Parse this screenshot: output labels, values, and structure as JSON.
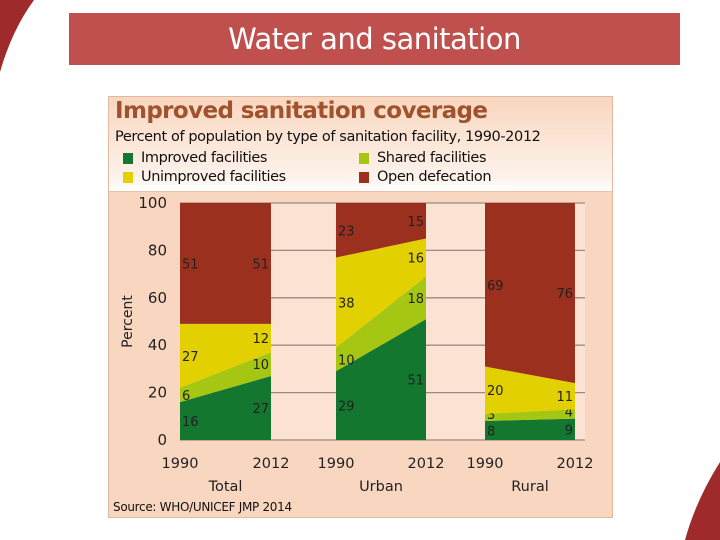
{
  "slide": {
    "title": "Water and sanitation",
    "accent_color": "#c0504d",
    "decor_color": "#9e2a2b"
  },
  "panel": {
    "title": "Improved sanitation coverage",
    "subtitle": "Percent of population by type of sanitation facility, 1990-2012",
    "source": "Source:  WHO/UNICEF JMP 2014"
  },
  "chart_data": {
    "type": "area",
    "title": "Improved sanitation coverage",
    "subtitle": "Percent of population by type of sanitation facility, 1990-2012",
    "ylabel": "Percent",
    "ylim": [
      0,
      100
    ],
    "yticks": [
      0,
      20,
      40,
      60,
      80,
      100
    ],
    "grid": true,
    "stacked": true,
    "legend": [
      {
        "name": "Improved facilities",
        "color": "#13772f"
      },
      {
        "name": "Shared facilities",
        "color": "#a5c613"
      },
      {
        "name": "Unimproved facilities",
        "color": "#e3d000"
      },
      {
        "name": "Open defecation",
        "color": "#9b301f"
      }
    ],
    "legend_position": "top",
    "groups": [
      {
        "name": "Total",
        "x": [
          "1990",
          "2012"
        ],
        "series": [
          {
            "name": "Improved facilities",
            "values": [
              16,
              27
            ]
          },
          {
            "name": "Shared facilities",
            "values": [
              6,
              10
            ]
          },
          {
            "name": "Unimproved facilities",
            "values": [
              27,
              12
            ]
          },
          {
            "name": "Open defecation",
            "values": [
              51,
              51
            ]
          }
        ]
      },
      {
        "name": "Urban",
        "x": [
          "1990",
          "2012"
        ],
        "series": [
          {
            "name": "Improved facilities",
            "values": [
              29,
              51
            ]
          },
          {
            "name": "Shared facilities",
            "values": [
              10,
              18
            ]
          },
          {
            "name": "Unimproved facilities",
            "values": [
              38,
              16
            ]
          },
          {
            "name": "Open defecation",
            "values": [
              23,
              15
            ]
          }
        ]
      },
      {
        "name": "Rural",
        "x": [
          "1990",
          "2012"
        ],
        "series": [
          {
            "name": "Improved facilities",
            "values": [
              8,
              9
            ]
          },
          {
            "name": "Shared facilities",
            "values": [
              3,
              4
            ]
          },
          {
            "name": "Unimproved facilities",
            "values": [
              20,
              11
            ]
          },
          {
            "name": "Open defecation",
            "values": [
              69,
              76
            ]
          }
        ]
      }
    ],
    "source": "Source:  WHO/UNICEF JMP 2014"
  }
}
